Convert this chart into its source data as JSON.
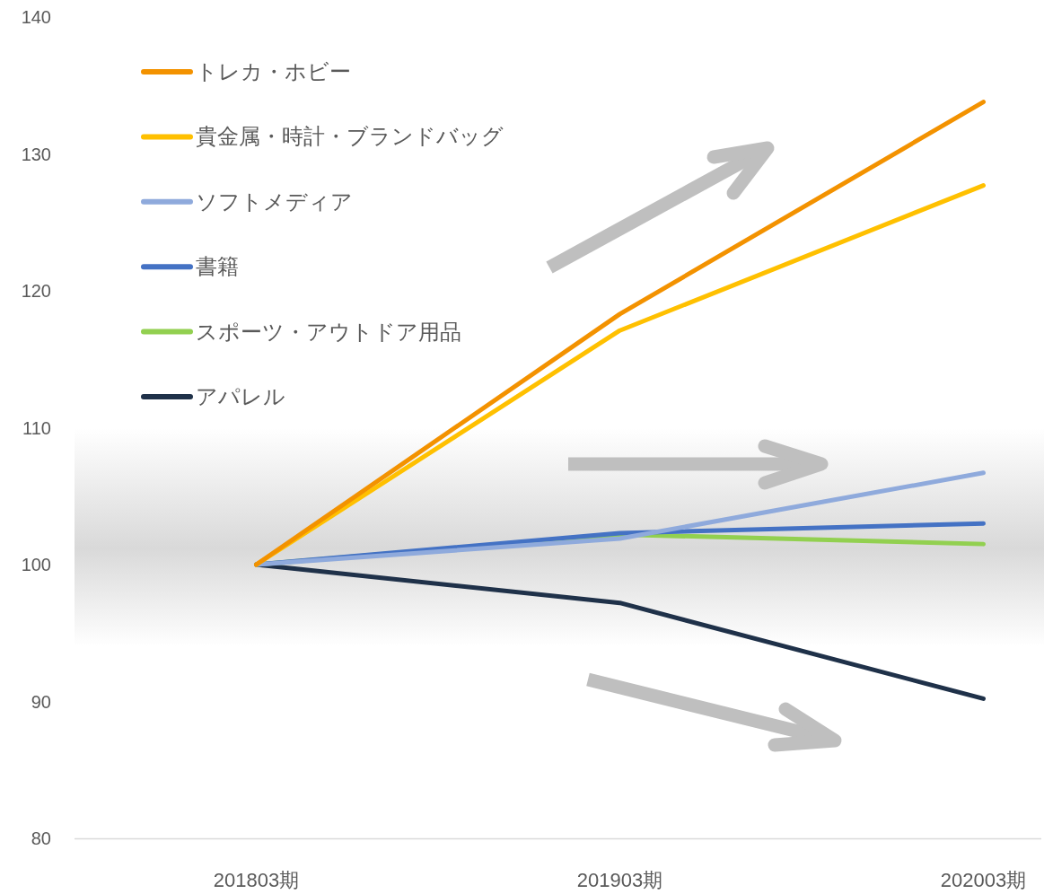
{
  "chart_data": {
    "type": "line",
    "categories": [
      "201803期",
      "201903期",
      "202003期"
    ],
    "series": [
      {
        "name": "トレカ・ホビー",
        "color": "#f39200",
        "values": [
          100,
          118.3,
          133.8
        ]
      },
      {
        "name": "貴金属・時計・ブランドバッグ",
        "color": "#ffc000",
        "values": [
          100,
          117.1,
          127.7
        ]
      },
      {
        "name": "ソフトメディア",
        "color": "#8faadc",
        "values": [
          100,
          101.9,
          106.7
        ]
      },
      {
        "name": "書籍",
        "color": "#4472c4",
        "values": [
          100,
          102.3,
          103.0
        ]
      },
      {
        "name": "スポーツ・アウトドア用品",
        "color": "#92d050",
        "values": [
          100,
          102.2,
          101.5
        ]
      },
      {
        "name": "アパレル",
        "color": "#1f3149",
        "values": [
          100,
          97.2,
          90.2
        ]
      }
    ],
    "ylim": [
      80,
      140
    ],
    "yticks": [
      80,
      90,
      100,
      110,
      120,
      130,
      140
    ],
    "bands": [
      {
        "axis": "y",
        "from": 94,
        "to": 110,
        "color": "#d9d9d9"
      }
    ],
    "grid": false,
    "legend": "top left",
    "marker": "none",
    "line_style": "solid"
  }
}
